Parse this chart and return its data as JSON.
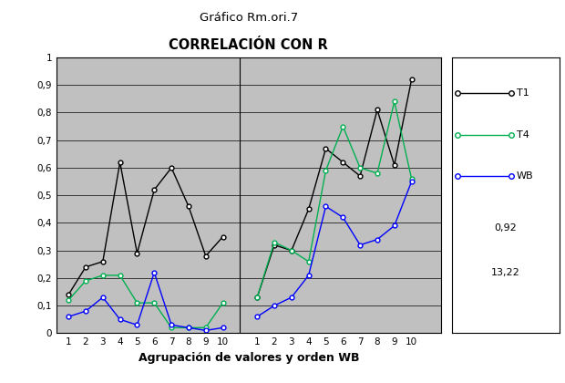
{
  "title_line1": "Gráfico Rm.ori.7",
  "title_line2": "CORRELACIÓN CON R",
  "xlabel": "Agrupación de valores y orden WB",
  "ylim": [
    0,
    1
  ],
  "yticks": [
    0,
    0.1,
    0.2,
    0.3,
    0.4,
    0.5,
    0.6,
    0.7,
    0.8,
    0.9,
    1
  ],
  "background_color": "#c0c0c0",
  "T1_group1": [
    0.14,
    0.24,
    0.26,
    0.62,
    0.29,
    0.52,
    0.6,
    0.46,
    0.28,
    0.35
  ],
  "T1_group2": [
    0.13,
    0.32,
    0.3,
    0.45,
    0.67,
    0.62,
    0.57,
    0.81,
    0.61,
    0.92
  ],
  "T4_group1": [
    0.12,
    0.19,
    0.21,
    0.21,
    0.11,
    0.11,
    0.02,
    0.02,
    0.02,
    0.11
  ],
  "T4_group2": [
    0.13,
    0.33,
    0.3,
    0.26,
    0.59,
    0.75,
    0.6,
    0.58,
    0.84,
    0.56
  ],
  "WB_group1": [
    0.06,
    0.08,
    0.13,
    0.05,
    0.03,
    0.22,
    0.03,
    0.02,
    0.01,
    0.02
  ],
  "WB_group2": [
    0.06,
    0.1,
    0.13,
    0.21,
    0.46,
    0.42,
    0.32,
    0.34,
    0.39,
    0.55
  ],
  "T1_color": "#000000",
  "T4_color": "#00b050",
  "WB_color": "#0000ff",
  "legend_extras": [
    "0,92",
    "13,22"
  ]
}
